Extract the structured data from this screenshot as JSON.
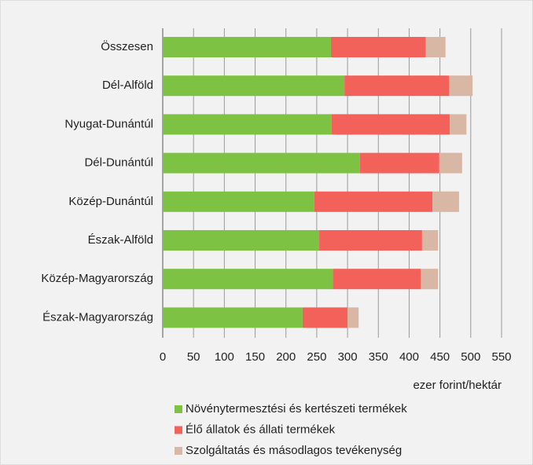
{
  "chart_data": {
    "type": "stacked-barh",
    "categories": [
      "Összesen",
      "Dél-Alföld",
      "Nyugat-Dunántúl",
      "Dél-Dunántúl",
      "Közép-Dunántúl",
      "Észak-Alföld",
      "Közép-Magyarország",
      "Észak-Magyarország"
    ],
    "series": [
      {
        "name": "Növénytermesztési és kertészeti termékek",
        "color": "#7dc242",
        "values": [
          273,
          295,
          274,
          320,
          246,
          254,
          276,
          227
        ]
      },
      {
        "name": "Élő állatok és állati termékek",
        "color": "#f2625a",
        "values": [
          154,
          170,
          192,
          129,
          192,
          167,
          143,
          73
        ]
      },
      {
        "name": "Szolgáltatás és másodlagos tevékenység",
        "color": "#d8b7a4",
        "values": [
          32,
          38,
          27,
          37,
          43,
          26,
          28,
          18
        ]
      }
    ],
    "xlabel": "ezer forint/hektár",
    "xlim": [
      0,
      550
    ],
    "xticks": [
      0,
      50,
      100,
      150,
      200,
      250,
      300,
      350,
      400,
      450,
      500,
      550
    ],
    "grid": true
  }
}
